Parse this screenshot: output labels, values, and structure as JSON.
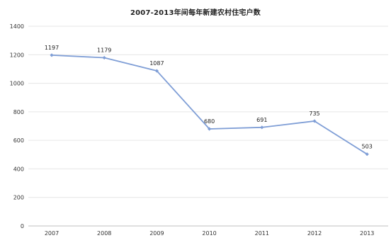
{
  "chart_data": {
    "type": "line",
    "title": "2007-2013年间每年新建农村住宅户数",
    "xlabel": "",
    "ylabel": "",
    "categories": [
      "2007",
      "2008",
      "2009",
      "2010",
      "2011",
      "2012",
      "2013"
    ],
    "series": [
      {
        "values": [
          1197,
          1179,
          1087,
          680,
          691,
          735,
          503
        ],
        "color": "#7f9ed6"
      }
    ],
    "data_labels": [
      "1197",
      "1179",
      "1087",
      "680",
      "691",
      "735",
      "503"
    ],
    "ylim": [
      0,
      1400
    ],
    "yticks": [
      0,
      200,
      400,
      600,
      800,
      1000,
      1200,
      1400
    ],
    "grid": true,
    "legend": "none"
  },
  "colors": {
    "line": "#7f9ed6",
    "grid": "#e6e6e6",
    "axis": "#bfbfbf"
  }
}
